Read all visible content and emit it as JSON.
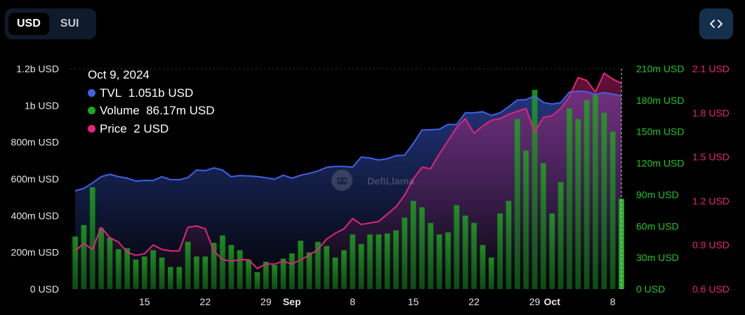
{
  "toggle": {
    "options": [
      "USD",
      "SUI"
    ],
    "selected": "USD"
  },
  "embed_icon": "code-brackets-icon",
  "watermark": "DefiLlama",
  "tooltip": {
    "date": "Oct 9, 2024",
    "rows": [
      {
        "label": "TVL",
        "value": "1.051b USD",
        "color": "#3f62e6"
      },
      {
        "label": "Volume",
        "value": "86.17m USD",
        "color": "#1ea822"
      },
      {
        "label": "Price",
        "value": "2 USD",
        "color": "#e0257a"
      }
    ]
  },
  "chart_data": {
    "type": "line+bar",
    "x_range": [
      "2024-08-07",
      "2024-10-09"
    ],
    "x_ticks": [
      {
        "date": "2024-08-15",
        "label": "15",
        "bold": false
      },
      {
        "date": "2024-08-22",
        "label": "22",
        "bold": false
      },
      {
        "date": "2024-08-29",
        "label": "29",
        "bold": false
      },
      {
        "date": "2024-09-01",
        "label": "Sep",
        "bold": true
      },
      {
        "date": "2024-09-08",
        "label": "8",
        "bold": false
      },
      {
        "date": "2024-09-15",
        "label": "15",
        "bold": false
      },
      {
        "date": "2024-09-22",
        "label": "22",
        "bold": false
      },
      {
        "date": "2024-09-29",
        "label": "29",
        "bold": false
      },
      {
        "date": "2024-10-01",
        "label": "Oct",
        "bold": true
      },
      {
        "date": "2024-10-08",
        "label": "8",
        "bold": false
      }
    ],
    "axes": {
      "tvl": {
        "unit": "USD",
        "min": 0,
        "max": 1200000000,
        "ticks": [
          "0 USD",
          "200m USD",
          "400m USD",
          "600m USD",
          "800m USD",
          "1b USD",
          "1.2b USD"
        ],
        "color": "#e6e6e6"
      },
      "volume": {
        "unit": "USD",
        "min": 0,
        "max": 210000000,
        "ticks": [
          "0 USD",
          "30m USD",
          "60m USD",
          "90m USD",
          "120m USD",
          "150m USD",
          "180m USD",
          "210m USD"
        ],
        "color": "#22c522"
      },
      "price": {
        "unit": "USD",
        "min": 0.6,
        "max": 2.1,
        "ticks": [
          "0.6 USD",
          "0.9 USD",
          "1.2 USD",
          "1.5 USD",
          "1.8 USD",
          "2.1 USD"
        ],
        "color": "#e0257a"
      }
    },
    "dates": [
      "2024-08-07",
      "2024-08-08",
      "2024-08-09",
      "2024-08-10",
      "2024-08-11",
      "2024-08-12",
      "2024-08-13",
      "2024-08-14",
      "2024-08-15",
      "2024-08-16",
      "2024-08-17",
      "2024-08-18",
      "2024-08-19",
      "2024-08-20",
      "2024-08-21",
      "2024-08-22",
      "2024-08-23",
      "2024-08-24",
      "2024-08-25",
      "2024-08-26",
      "2024-08-27",
      "2024-08-28",
      "2024-08-29",
      "2024-08-30",
      "2024-08-31",
      "2024-09-01",
      "2024-09-02",
      "2024-09-03",
      "2024-09-04",
      "2024-09-05",
      "2024-09-06",
      "2024-09-07",
      "2024-09-08",
      "2024-09-09",
      "2024-09-10",
      "2024-09-11",
      "2024-09-12",
      "2024-09-13",
      "2024-09-14",
      "2024-09-15",
      "2024-09-16",
      "2024-09-17",
      "2024-09-18",
      "2024-09-19",
      "2024-09-20",
      "2024-09-21",
      "2024-09-22",
      "2024-09-23",
      "2024-09-24",
      "2024-09-25",
      "2024-09-26",
      "2024-09-27",
      "2024-09-28",
      "2024-09-29",
      "2024-09-30",
      "2024-10-01",
      "2024-10-02",
      "2024-10-03",
      "2024-10-04",
      "2024-10-05",
      "2024-10-06",
      "2024-10-07",
      "2024-10-08",
      "2024-10-09"
    ],
    "series": [
      {
        "name": "TVL",
        "type": "area",
        "axis": "tvl",
        "color": "#3f62e6",
        "values": [
          535,
          548,
          578,
          612,
          625,
          612,
          604,
          588,
          592,
          591,
          612,
          596,
          595,
          607,
          648,
          645,
          660,
          648,
          612,
          618,
          616,
          613,
          606,
          598,
          620,
          604,
          620,
          630,
          643,
          663,
          668,
          668,
          664,
          719,
          713,
          703,
          710,
          727,
          729,
          793,
          866,
          868,
          870,
          897,
          896,
          960,
          960,
          966,
          946,
          960,
          993,
          1030,
          1032,
          1053,
          1016,
          1008,
          1015,
          1073,
          1078,
          1075,
          1060,
          1070,
          1062,
          1051
        ]
      },
      {
        "name": "Volume",
        "type": "bar",
        "axis": "volume",
        "values": [
          50,
          61,
          97,
          58,
          49,
          38,
          39,
          28,
          31,
          37,
          30,
          21,
          21,
          45,
          31,
          31,
          44,
          51,
          42,
          37,
          28,
          16,
          26,
          23,
          29,
          34,
          46,
          35,
          45,
          41,
          30,
          37,
          52,
          43,
          52,
          52,
          53,
          56,
          68,
          84,
          78,
          63,
          52,
          54,
          80,
          70,
          63,
          42,
          30,
          72,
          84,
          162,
          132,
          190,
          120,
          72,
          102,
          172,
          162,
          180,
          185,
          168,
          150,
          86
        ]
      },
      {
        "name": "Price",
        "type": "line",
        "axis": "price",
        "color": "#e0257a",
        "values": [
          0.86,
          0.91,
          0.87,
          1.02,
          0.95,
          0.92,
          0.85,
          0.83,
          0.84,
          0.9,
          0.87,
          0.86,
          0.86,
          1.02,
          1.03,
          1.01,
          0.86,
          0.8,
          0.79,
          0.8,
          0.8,
          0.74,
          0.77,
          0.77,
          0.79,
          0.77,
          0.8,
          0.83,
          0.87,
          0.94,
          0.98,
          1.01,
          1.08,
          1.04,
          1.05,
          1.06,
          1.11,
          1.16,
          1.24,
          1.35,
          1.43,
          1.42,
          1.52,
          1.61,
          1.7,
          1.76,
          1.66,
          1.71,
          1.75,
          1.76,
          1.79,
          1.81,
          1.83,
          1.67,
          1.77,
          1.78,
          1.83,
          1.91,
          2.04,
          2.02,
          1.94,
          2.07,
          2.03,
          2.0
        ]
      }
    ]
  }
}
